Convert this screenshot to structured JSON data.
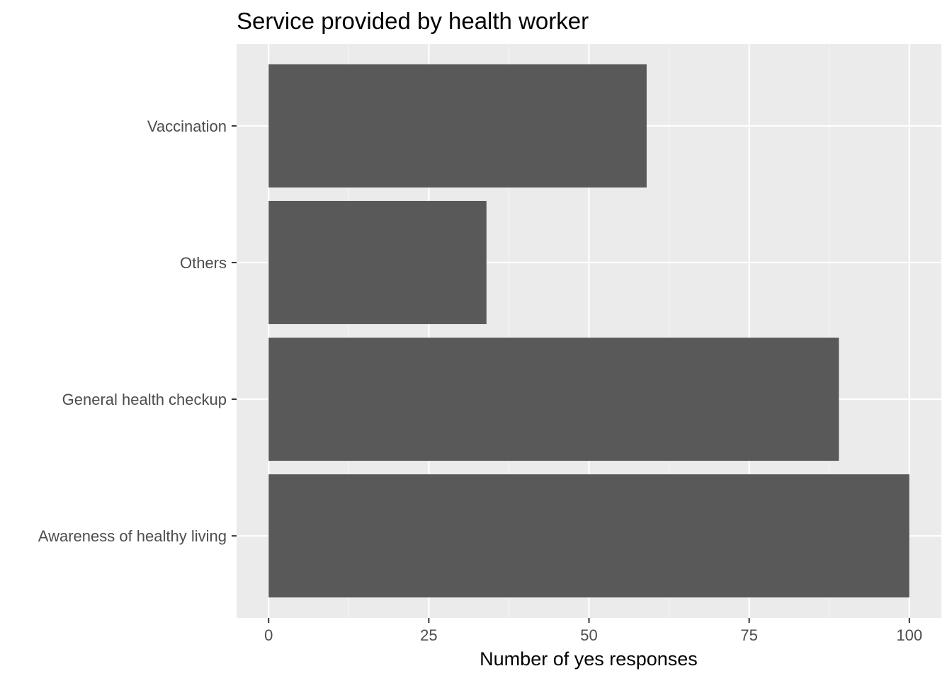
{
  "chart_data": {
    "type": "bar",
    "orientation": "horizontal",
    "title": "Service provided by health worker",
    "xlabel": "Number of yes responses",
    "ylabel": "",
    "categories": [
      "Vaccination",
      "Others",
      "General health checkup",
      "Awareness of healthy living"
    ],
    "values": [
      59,
      34,
      89,
      100
    ],
    "xlim": [
      -5,
      105
    ],
    "x_ticks": [
      0,
      25,
      50,
      75,
      100
    ],
    "x_minor_ticks": [
      12.5,
      37.5,
      62.5,
      87.5
    ],
    "grid": true,
    "legend": "none",
    "colors": {
      "bar": "#595959",
      "panel_background": "#ebebeb",
      "grid_major": "#ffffff",
      "grid_minor": "#f5f5f5",
      "tick_label": "#4d4d4d",
      "tick_mark": "#333333",
      "title": "#000000"
    }
  }
}
